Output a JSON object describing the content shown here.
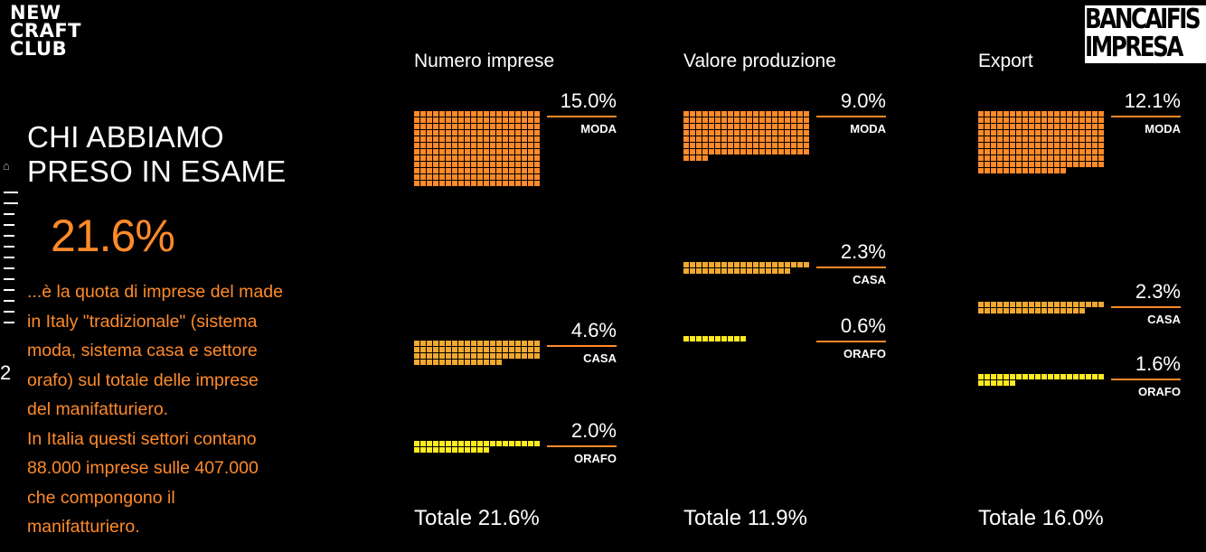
{
  "brand": {
    "left_logo": [
      "NEW",
      "CRAFT",
      "CLUB"
    ],
    "right_logo": [
      "BANCAIFIS",
      "IMPRESA"
    ]
  },
  "slide": {
    "title_line1": "CHI ABBIAMO",
    "title_line2": "PRESO IN ESAME",
    "highlight_value": "21.6%",
    "description_lines": [
      "...è la quota di imprese del made",
      "in Italy \"tradizionale\" (sistema",
      "moda, sistema casa e settore",
      "orafo) sul totale delle imprese",
      "del manifatturiero.",
      "In Italia questi settori contano",
      "88.000 imprese sulle 407.000",
      "che compongono il",
      "manifatturiero."
    ],
    "slide_number": "2",
    "home_icon": "home-icon"
  },
  "colors": {
    "moda": "#ff8a2a",
    "casa": "#f0a830",
    "orafo": "#ffea1f",
    "accent_text": "#ff8a2a",
    "background": "#000000"
  },
  "chart_data": {
    "type": "waffle",
    "categories": [
      "MODA",
      "CASA",
      "ORAFO"
    ],
    "series": [
      {
        "name": "Numero imprese",
        "values": [
          15.0,
          4.6,
          2.0
        ],
        "labels": [
          "15.0%",
          "4.6%",
          "2.0%"
        ],
        "total": "Totale 21.6%"
      },
      {
        "name": "Valore produzione",
        "values": [
          9.0,
          2.3,
          0.6
        ],
        "labels": [
          "9.0%",
          "2.3%",
          "0.6%"
        ],
        "total": "Totale 11.9%"
      },
      {
        "name": "Export",
        "values": [
          12.1,
          2.3,
          1.6
        ],
        "labels": [
          "12.1%",
          "2.3%",
          "1.6%"
        ],
        "total": "Totale 16.0%"
      }
    ]
  }
}
